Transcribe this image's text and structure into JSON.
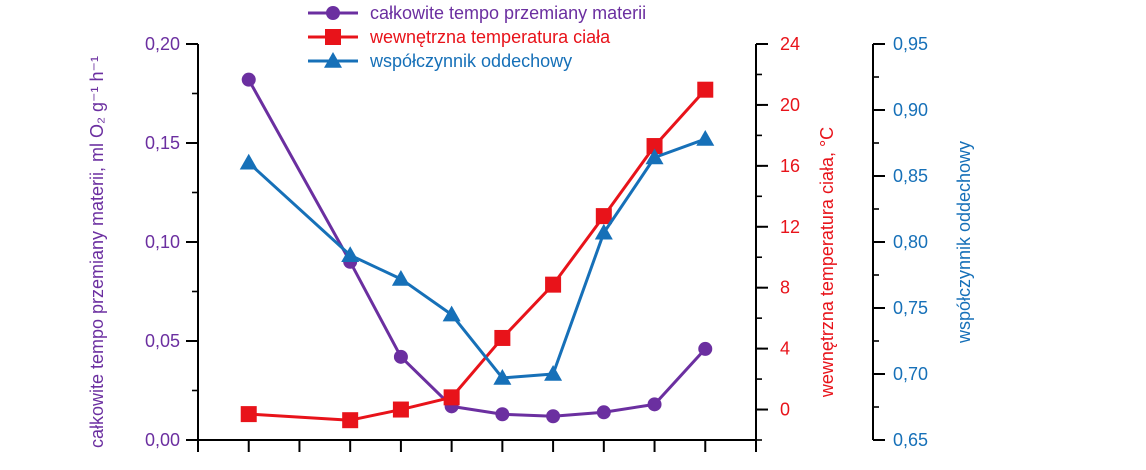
{
  "chart_data": {
    "type": "line",
    "title": "",
    "x": [
      1,
      3,
      4,
      5,
      6,
      7,
      8,
      9,
      10
    ],
    "xlim": [
      0,
      11
    ],
    "axes": {
      "left": {
        "label": "całkowite tempo przemiany materii, ml O₂ g⁻¹ h⁻¹",
        "ylim": [
          0.0,
          0.2
        ],
        "ticks": [
          "0,00",
          "0,05",
          "0,10",
          "0,15",
          "0,20"
        ],
        "tick_values": [
          0.0,
          0.05,
          0.1,
          0.15,
          0.2
        ],
        "color": "#6b2fa0"
      },
      "right1": {
        "label": "wewnętrzna temperatura ciała, °C",
        "ylim": [
          -2,
          24
        ],
        "ticks": [
          "0",
          "4",
          "8",
          "12",
          "16",
          "20",
          "24"
        ],
        "tick_values": [
          0,
          4,
          8,
          12,
          16,
          20,
          24
        ],
        "color": "#e8131a"
      },
      "right2": {
        "label": "współczynnik oddechowy",
        "ylim": [
          0.65,
          0.95
        ],
        "ticks": [
          "0,65",
          "0,70",
          "0,75",
          "0,80",
          "0,85",
          "0,90",
          "0,95"
        ],
        "tick_values": [
          0.65,
          0.7,
          0.75,
          0.8,
          0.85,
          0.9,
          0.95
        ],
        "color": "#1670b8"
      }
    },
    "series": [
      {
        "name": "całkowite tempo przemiany materii",
        "axis": "left",
        "marker": "circle",
        "color": "#6b2fa0",
        "values": [
          0.182,
          0.09,
          0.042,
          0.017,
          0.013,
          0.012,
          0.014,
          0.018,
          0.046
        ]
      },
      {
        "name": "wewnętrzna temperatura ciała",
        "axis": "right1",
        "marker": "square",
        "color": "#e8131a",
        "values": [
          -0.3,
          -0.7,
          0.0,
          0.8,
          4.7,
          8.2,
          12.7,
          17.3,
          21.0
        ]
      },
      {
        "name": "współczynnik oddechowy",
        "axis": "right2",
        "marker": "triangle",
        "color": "#1670b8",
        "values": [
          0.86,
          0.79,
          0.772,
          0.745,
          0.697,
          0.7,
          0.807,
          0.864,
          0.878
        ]
      }
    ],
    "legend_position": "top-center",
    "grid": false
  }
}
